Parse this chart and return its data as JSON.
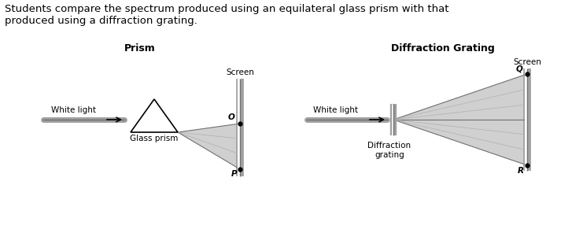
{
  "background_color": "#ffffff",
  "title_text": "Students compare the spectrum produced using an equilateral glass prism with that\nproduced using a diffraction grating.",
  "title_fontsize": 9.5,
  "prism_label": "Prism",
  "grating_label": "Diffraction Grating",
  "label_fontsize": 9,
  "screen_label": "Screen",
  "white_light_label": "White light",
  "glass_prism_label": "Glass prism",
  "diffraction_grating_label": "Diffraction\ngrating",
  "point_O_label": "O",
  "point_P_label": "P",
  "point_Q_label": "Q",
  "point_R_label": "R",
  "annotation_fontsize": 7.5,
  "gray_light": "#d0d0d0",
  "gray_mid": "#b0b0b0",
  "gray_dark": "#707070",
  "gray_screen": "#a0a0a0",
  "black": "#000000",
  "white": "#ffffff"
}
